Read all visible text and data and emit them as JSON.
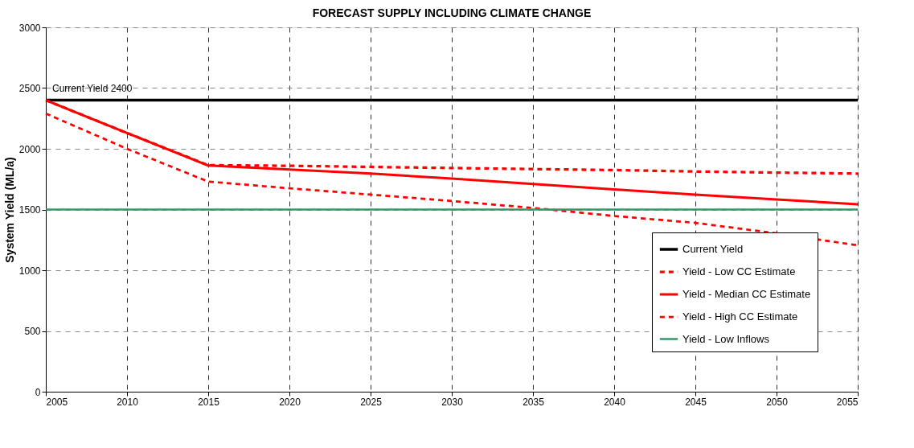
{
  "chart_data": {
    "type": "line",
    "title": "FORECAST SUPPLY INCLUDING CLIMATE CHANGE",
    "ylabel": "System Yield (ML/a)",
    "x": [
      2005,
      2010,
      2015,
      2020,
      2025,
      2030,
      2035,
      2040,
      2045,
      2050,
      2055
    ],
    "series": [
      {
        "name": "Current Yield",
        "color": "#000000",
        "line_style": "solid",
        "values": [
          2400,
          2400,
          2400,
          2400,
          2400,
          2400,
          2400,
          2400,
          2400,
          2400,
          2400
        ]
      },
      {
        "name": "Yield - Low CC Estimate",
        "color": "#ff0000",
        "line_style": "dashed",
        "values": [
          2400,
          2130,
          1865,
          1860,
          1851,
          1842,
          1833,
          1825,
          1813,
          1804,
          1796
        ]
      },
      {
        "name": "Yield - Median CC Estimate",
        "color": "#ff0000",
        "line_style": "solid",
        "values": [
          2400,
          2130,
          1862,
          1830,
          1796,
          1755,
          1711,
          1665,
          1623,
          1583,
          1543
        ]
      },
      {
        "name": "Yield - High CC Estimate",
        "color": "#ff0000",
        "line_style": "dashed",
        "values": [
          2290,
          2000,
          1730,
          1675,
          1623,
          1570,
          1513,
          1447,
          1390,
          1304,
          1205
        ]
      },
      {
        "name": "Yield - Low Inflows",
        "color": "#339966",
        "line_style": "solid",
        "values": [
          1500,
          1500,
          1500,
          1500,
          1500,
          1500,
          1500,
          1500,
          1500,
          1500,
          1500
        ]
      }
    ],
    "xlim": [
      2005,
      2055
    ],
    "xticks": [
      2005,
      2010,
      2015,
      2020,
      2025,
      2030,
      2035,
      2040,
      2045,
      2050,
      2055
    ],
    "ylim": [
      0,
      3000
    ],
    "yticks": [
      0,
      500,
      1000,
      1500,
      2000,
      2500,
      3000
    ],
    "annotations": [
      {
        "text": "Current Yield 2400",
        "x": 2005,
        "y": 2400
      }
    ],
    "grid": true,
    "legend": "bottom right",
    "marker": "none"
  }
}
